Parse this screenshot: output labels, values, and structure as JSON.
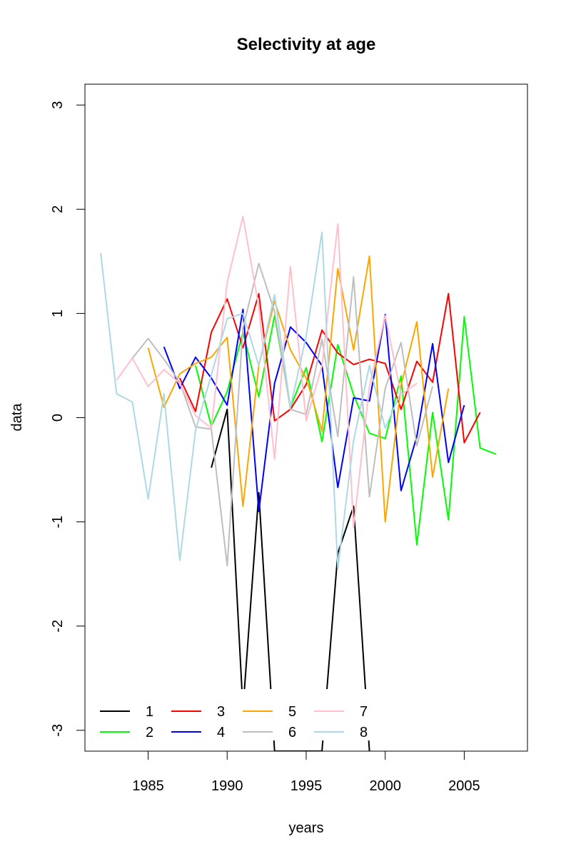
{
  "chart_data": {
    "type": "line",
    "title": "Selectivity at age",
    "xlabel": "years",
    "ylabel": "data",
    "xlim": [
      1981,
      2009
    ],
    "ylim": [
      -3.2,
      3.2
    ],
    "x_ticks": [
      1985,
      1990,
      1995,
      2000,
      2005
    ],
    "y_ticks": [
      -3,
      -2,
      -1,
      0,
      1,
      2,
      3
    ],
    "grid": false,
    "legend_position": "bottom-left",
    "series": [
      {
        "name": "1",
        "color": "#000000",
        "points": [
          [
            1989,
            -0.48
          ],
          [
            1990,
            0.08
          ],
          [
            1991,
            -2.8
          ],
          [
            1992,
            -0.72
          ],
          [
            1993,
            -3.2
          ],
          [
            1996,
            -3.2
          ],
          [
            1997,
            -1.3
          ],
          [
            1998,
            -0.85
          ],
          [
            1999,
            -3.2
          ]
        ]
      },
      {
        "name": "2",
        "color": "#00ff00",
        "points": [
          [
            1988,
            0.5
          ],
          [
            1989,
            -0.08
          ],
          [
            1990,
            0.25
          ],
          [
            1991,
            0.82
          ],
          [
            1992,
            0.2
          ],
          [
            1993,
            0.98
          ],
          [
            1994,
            0.1
          ],
          [
            1995,
            0.48
          ],
          [
            1996,
            -0.23
          ],
          [
            1997,
            0.7
          ],
          [
            1998,
            0.22
          ],
          [
            1999,
            -0.15
          ],
          [
            2000,
            -0.2
          ],
          [
            2001,
            0.4
          ],
          [
            2002,
            -1.22
          ],
          [
            2003,
            0.05
          ],
          [
            2004,
            -0.98
          ],
          [
            2005,
            0.97
          ],
          [
            2006,
            -0.29
          ],
          [
            2007,
            -0.35
          ]
        ]
      },
      {
        "name": "3",
        "color": "#ff0000",
        "points": [
          [
            1987,
            0.38
          ],
          [
            1988,
            0.06
          ],
          [
            1989,
            0.82
          ],
          [
            1990,
            1.14
          ],
          [
            1991,
            0.67
          ],
          [
            1992,
            1.19
          ],
          [
            1993,
            -0.03
          ],
          [
            1994,
            0.08
          ],
          [
            1995,
            0.32
          ],
          [
            1996,
            0.84
          ],
          [
            1997,
            0.62
          ],
          [
            1998,
            0.51
          ],
          [
            1999,
            0.56
          ],
          [
            2000,
            0.52
          ],
          [
            2001,
            0.08
          ],
          [
            2002,
            0.54
          ],
          [
            2003,
            0.34
          ],
          [
            2004,
            1.19
          ],
          [
            2005,
            -0.24
          ],
          [
            2006,
            0.05
          ]
        ]
      },
      {
        "name": "4",
        "color": "#0000ff",
        "points": [
          [
            1986,
            0.68
          ],
          [
            1987,
            0.28
          ],
          [
            1988,
            0.58
          ],
          [
            1989,
            0.38
          ],
          [
            1990,
            0.12
          ],
          [
            1991,
            1.04
          ],
          [
            1992,
            -0.9
          ],
          [
            1993,
            0.33
          ],
          [
            1994,
            0.87
          ],
          [
            1995,
            0.72
          ],
          [
            1996,
            0.5
          ],
          [
            1997,
            -0.67
          ],
          [
            1998,
            0.19
          ],
          [
            1999,
            0.16
          ],
          [
            2000,
            0.99
          ],
          [
            2001,
            -0.7
          ],
          [
            2002,
            -0.18
          ],
          [
            2003,
            0.71
          ],
          [
            2004,
            -0.43
          ],
          [
            2005,
            0.12
          ]
        ]
      },
      {
        "name": "5",
        "color": "#ffa500",
        "points": [
          [
            1985,
            0.67
          ],
          [
            1986,
            0.1
          ],
          [
            1987,
            0.42
          ],
          [
            1988,
            0.52
          ],
          [
            1989,
            0.58
          ],
          [
            1990,
            0.77
          ],
          [
            1991,
            -0.85
          ],
          [
            1992,
            0.5
          ],
          [
            1993,
            1.12
          ],
          [
            1994,
            0.65
          ],
          [
            1995,
            0.38
          ],
          [
            1996,
            -0.13
          ],
          [
            1997,
            1.43
          ],
          [
            1998,
            0.65
          ],
          [
            1999,
            1.55
          ],
          [
            2000,
            -1.0
          ],
          [
            2001,
            0.31
          ],
          [
            2002,
            0.92
          ],
          [
            2003,
            -0.57
          ],
          [
            2004,
            0.28
          ]
        ]
      },
      {
        "name": "6",
        "color": "#bebebe",
        "points": [
          [
            1984,
            0.57
          ],
          [
            1985,
            0.76
          ],
          [
            1986,
            0.56
          ],
          [
            1987,
            0.34
          ],
          [
            1988,
            -0.09
          ],
          [
            1989,
            -0.11
          ],
          [
            1990,
            -1.42
          ],
          [
            1991,
            0.86
          ],
          [
            1992,
            1.48
          ],
          [
            1993,
            1.02
          ],
          [
            1994,
            0.08
          ],
          [
            1995,
            0.03
          ],
          [
            1996,
            0.75
          ],
          [
            1997,
            -0.18
          ],
          [
            1998,
            1.35
          ],
          [
            1999,
            -0.76
          ],
          [
            2000,
            0.28
          ],
          [
            2001,
            0.72
          ],
          [
            2002,
            -0.27
          ],
          [
            2003,
            0.3
          ]
        ]
      },
      {
        "name": "7",
        "color": "#ffc0cb",
        "points": [
          [
            1983,
            0.36
          ],
          [
            1984,
            0.57
          ],
          [
            1985,
            0.3
          ],
          [
            1986,
            0.46
          ],
          [
            1987,
            0.33
          ],
          [
            1988,
            0.02
          ],
          [
            1989,
            -0.1
          ],
          [
            1990,
            1.3
          ],
          [
            1991,
            1.93
          ],
          [
            1992,
            1.06
          ],
          [
            1993,
            -0.4
          ],
          [
            1994,
            1.45
          ],
          [
            1995,
            -0.03
          ],
          [
            1996,
            0.5
          ],
          [
            1997,
            1.86
          ],
          [
            1998,
            -1.05
          ],
          [
            1999,
            0.3
          ],
          [
            2000,
            0.98
          ],
          [
            2001,
            0.22
          ],
          [
            2002,
            0.33
          ]
        ]
      },
      {
        "name": "8",
        "color": "#add8e6",
        "points": [
          [
            1982,
            1.58
          ],
          [
            1983,
            0.23
          ],
          [
            1984,
            0.15
          ],
          [
            1985,
            -0.78
          ],
          [
            1986,
            0.23
          ],
          [
            1987,
            -1.37
          ],
          [
            1988,
            -0.12
          ],
          [
            1989,
            0.41
          ],
          [
            1990,
            0.95
          ],
          [
            1991,
            1.0
          ],
          [
            1992,
            0.5
          ],
          [
            1993,
            1.18
          ],
          [
            1994,
            0.1
          ],
          [
            1995,
            0.78
          ],
          [
            1996,
            1.78
          ],
          [
            1997,
            -1.45
          ],
          [
            1998,
            -0.22
          ],
          [
            1999,
            0.5
          ],
          [
            2000,
            -0.1
          ],
          [
            2001,
            0.25
          ]
        ]
      }
    ]
  }
}
